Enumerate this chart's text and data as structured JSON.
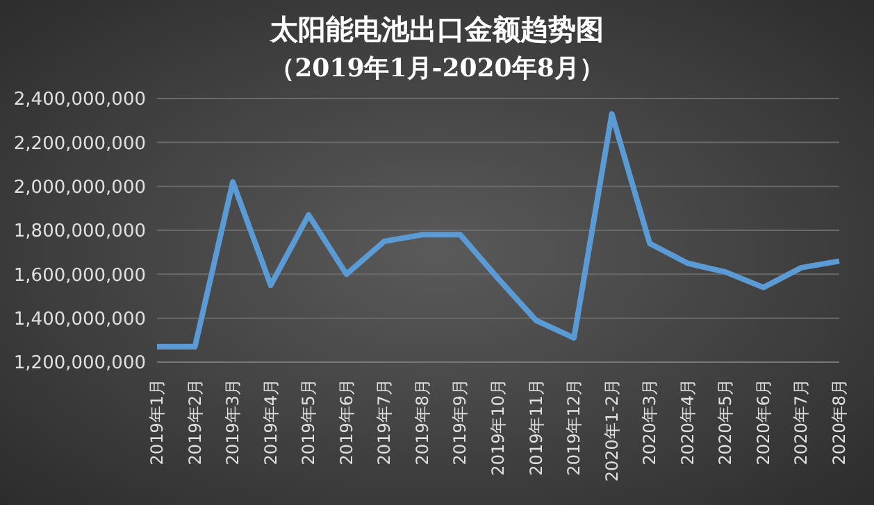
{
  "chart_data": {
    "type": "line",
    "title": "太阳能电池出口金额趋势图",
    "subtitle": "（2019年1月-2020年8月）",
    "categories": [
      "2019年1月",
      "2019年2月",
      "2019年3月",
      "2019年4月",
      "2019年5月",
      "2019年6月",
      "2019年7月",
      "2019年8月",
      "2019年9月",
      "2019年10月",
      "2019年11月",
      "2019年12月",
      "2020年1-2月",
      "2020年3月",
      "2020年4月",
      "2020年5月",
      "2020年6月",
      "2020年7月",
      "2020年8月"
    ],
    "series": [
      {
        "color": "#5b9bd5",
        "values": [
          1270000000,
          1270000000,
          2020000000,
          1550000000,
          1870000000,
          1600000000,
          1750000000,
          1780000000,
          1780000000,
          1580000000,
          1390000000,
          1310000000,
          2330000000,
          1740000000,
          1650000000,
          1610000000,
          1540000000,
          1630000000,
          1660000000
        ]
      }
    ],
    "ylim": [
      1200000000,
      2400000000
    ],
    "yticks": [
      {
        "value": 1200000000,
        "label": "1,200,000,000"
      },
      {
        "value": 1400000000,
        "label": "1,400,000,000"
      },
      {
        "value": 1600000000,
        "label": "1,600,000,000"
      },
      {
        "value": 1800000000,
        "label": "1,800,000,000"
      },
      {
        "value": 2000000000,
        "label": "2,000,000,000"
      },
      {
        "value": 2200000000,
        "label": "2,200,000,000"
      },
      {
        "value": 2400000000,
        "label": "2,400,000,000"
      }
    ],
    "grid": "y",
    "legend": false,
    "marker": "none",
    "line_style": "solid"
  }
}
